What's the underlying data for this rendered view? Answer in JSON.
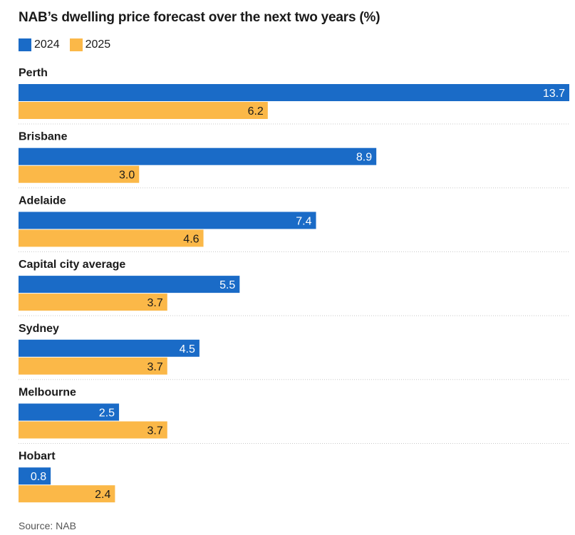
{
  "chart_data": {
    "type": "bar",
    "orientation": "horizontal",
    "title": "NAB’s dwelling price forecast over the next two years (%)",
    "categories": [
      "Perth",
      "Brisbane",
      "Adelaide",
      "Capital city average",
      "Sydney",
      "Melbourne",
      "Hobart"
    ],
    "series": [
      {
        "name": "2024",
        "color": "#1a6bc7",
        "values": [
          13.7,
          8.9,
          7.4,
          5.5,
          4.5,
          2.5,
          0.8
        ],
        "labels": [
          "13.7",
          "8.9",
          "7.4",
          "5.5",
          "4.5",
          "2.5",
          "0.8"
        ]
      },
      {
        "name": "2025",
        "color": "#fbb848",
        "values": [
          6.2,
          3.0,
          4.6,
          3.7,
          3.7,
          3.7,
          2.4
        ],
        "labels": [
          "6.2",
          "3.0",
          "4.6",
          "3.7",
          "3.7",
          "3.7",
          "2.4"
        ]
      }
    ],
    "xlim": [
      0,
      13.7
    ],
    "xlabel": "",
    "ylabel": "",
    "grid": false,
    "legend_position": "top-left",
    "source": "Source: NAB"
  }
}
